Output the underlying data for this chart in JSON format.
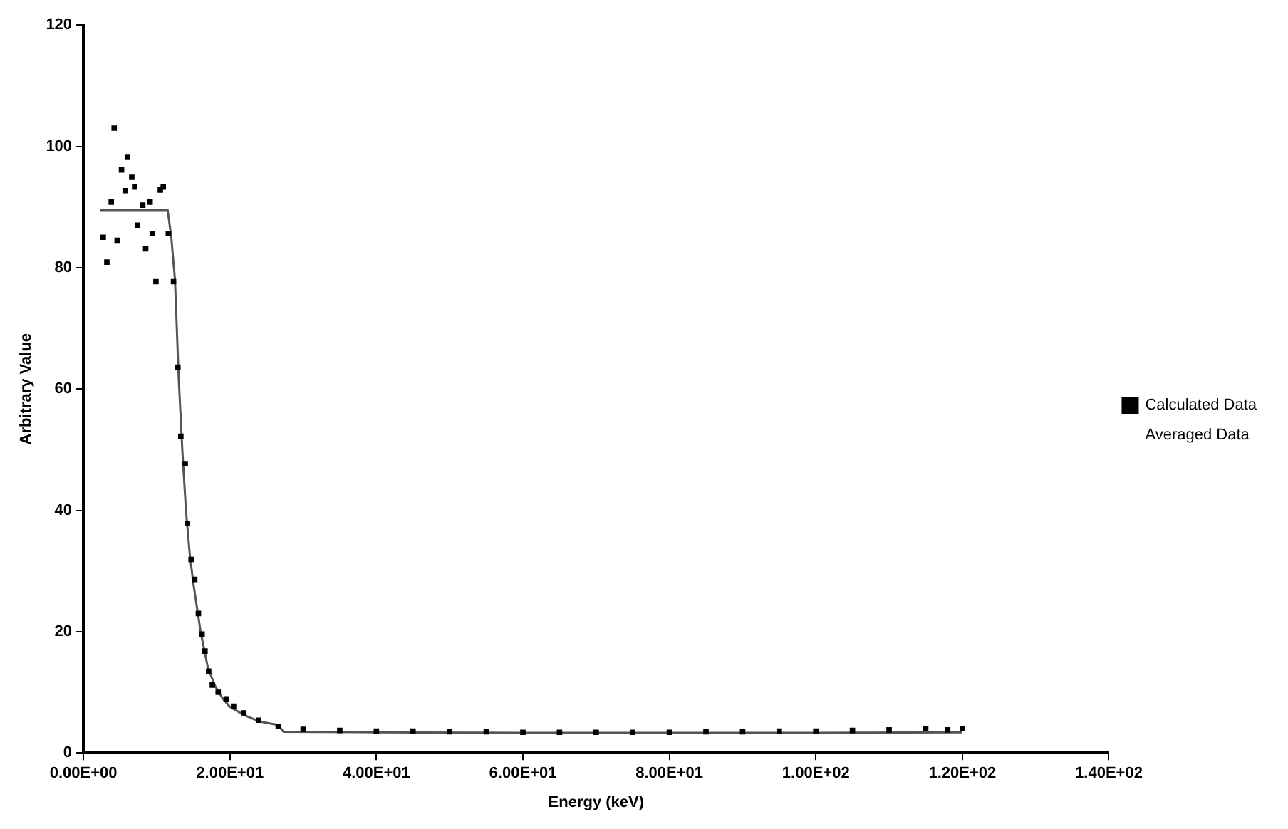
{
  "chart_data": {
    "type": "scatter",
    "xlabel": "Energy (keV)",
    "ylabel": "Arbitrary Value",
    "xlim": [
      0,
      140
    ],
    "xticks": [
      {
        "value": 0,
        "label": "0.00E+00"
      },
      {
        "value": 20,
        "label": "2.00E+01"
      },
      {
        "value": 40,
        "label": "4.00E+01"
      },
      {
        "value": 60,
        "label": "6.00E+01"
      },
      {
        "value": 80,
        "label": "8.00E+01"
      },
      {
        "value": 100,
        "label": "1.00E+02"
      },
      {
        "value": 120,
        "label": "1.20E+02"
      },
      {
        "value": 140,
        "label": "1.40E+02"
      }
    ],
    "ylim": [
      0,
      120
    ],
    "yticks": [
      0,
      20,
      40,
      60,
      80,
      100,
      120
    ],
    "grid": false,
    "legend": "right",
    "series": [
      {
        "name": "Calculated Data",
        "color": "#000000",
        "marker": "square",
        "x": [
          2.7,
          3.2,
          3.8,
          4.2,
          4.6,
          5.2,
          5.7,
          6.0,
          6.6,
          7.0,
          7.4,
          8.1,
          8.5,
          9.1,
          9.4,
          9.9,
          10.5,
          10.9,
          11.6,
          12.3,
          12.9,
          13.3,
          13.9,
          14.2,
          14.7,
          15.2,
          15.7,
          16.2,
          16.6,
          17.1,
          17.6,
          18.4,
          19.5,
          20.5,
          21.9,
          23.9,
          26.6,
          30,
          35,
          40,
          45,
          50,
          55,
          60,
          65,
          70,
          75,
          80,
          85,
          90,
          95,
          100,
          105,
          110,
          115,
          118,
          120
        ],
        "values": [
          85,
          80.9,
          90.8,
          103,
          84.5,
          96.1,
          92.7,
          98.3,
          94.9,
          93.3,
          87,
          90.3,
          83.1,
          90.8,
          85.6,
          77.7,
          92.8,
          93.3,
          85.6,
          77.7,
          63.6,
          52.2,
          47.7,
          37.8,
          31.9,
          28.6,
          23,
          19.6,
          16.8,
          13.5,
          11.2,
          10,
          8.9,
          7.7,
          6.6,
          5.4,
          4.4,
          3.9,
          3.7,
          3.6,
          3.6,
          3.5,
          3.5,
          3.4,
          3.4,
          3.4,
          3.4,
          3.4,
          3.5,
          3.5,
          3.6,
          3.6,
          3.7,
          3.8,
          4.0,
          3.8,
          4.0
        ]
      },
      {
        "name": "Averaged Data",
        "type": "line",
        "marker": "none",
        "color": "#555555",
        "x": [
          2.3,
          11.5,
          12.0,
          12.5,
          13.0,
          13.5,
          14.0,
          14.5,
          15.0,
          15.5,
          16,
          17,
          18,
          19,
          20,
          22,
          24,
          26.6,
          27.3,
          40,
          60,
          80,
          100,
          120
        ],
        "values": [
          89.5,
          89.5,
          85,
          78,
          62,
          50,
          40,
          33,
          28,
          24,
          20,
          14,
          11,
          9,
          7.6,
          6.2,
          5.2,
          4.6,
          3.5,
          3.4,
          3.3,
          3.3,
          3.3,
          3.4
        ]
      }
    ]
  }
}
